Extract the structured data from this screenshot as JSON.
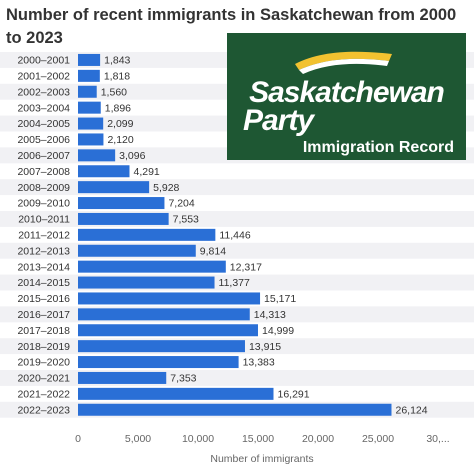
{
  "chart_data": {
    "type": "bar",
    "orientation": "horizontal",
    "title": "Number of recent immigrants in Saskatchewan from 2000 to 2023",
    "xlabel": "Number of immigrants",
    "ylabel": "",
    "xlim": [
      0,
      30000
    ],
    "x_ticks": [
      "0",
      "5,000",
      "10,000",
      "15,000",
      "20,000",
      "25,000",
      "30,..."
    ],
    "grid": "alternating row bands",
    "bar_color": "#2a6fd6",
    "categories": [
      "2000–2001",
      "2001–2002",
      "2002–2003",
      "2003–2004",
      "2004–2005",
      "2005–2006",
      "2006–2007",
      "2007–2008",
      "2008–2009",
      "2009–2010",
      "2010–2011",
      "2011–2012",
      "2012–2013",
      "2013–2014",
      "2014–2015",
      "2015–2016",
      "2016–2017",
      "2017–2018",
      "2018–2019",
      "2019–2020",
      "2020–2021",
      "2021–2022",
      "2022–2023"
    ],
    "values": [
      1843,
      1818,
      1560,
      1896,
      2099,
      2120,
      3096,
      4291,
      5928,
      7204,
      7553,
      11446,
      9814,
      12317,
      11377,
      15171,
      14313,
      14999,
      13915,
      13383,
      7353,
      16291,
      26124
    ],
    "value_labels": [
      "1,843",
      "1,818",
      "1,560",
      "1,896",
      "2,099",
      "2,120",
      "3,096",
      "4,291",
      "5,928",
      "7,204",
      "7,553",
      "11,446",
      "9,814",
      "12,317",
      "11,377",
      "15,171",
      "14,313",
      "14,999",
      "13,915",
      "13,383",
      "7,353",
      "16,291",
      "26,124"
    ]
  },
  "logo": {
    "word1": "Saskatchewan",
    "word2": "Party",
    "subtitle": "Immigration Record",
    "bg_color": "#1e5733",
    "flag_colors": [
      "#f2c230",
      "#ffffff"
    ]
  }
}
